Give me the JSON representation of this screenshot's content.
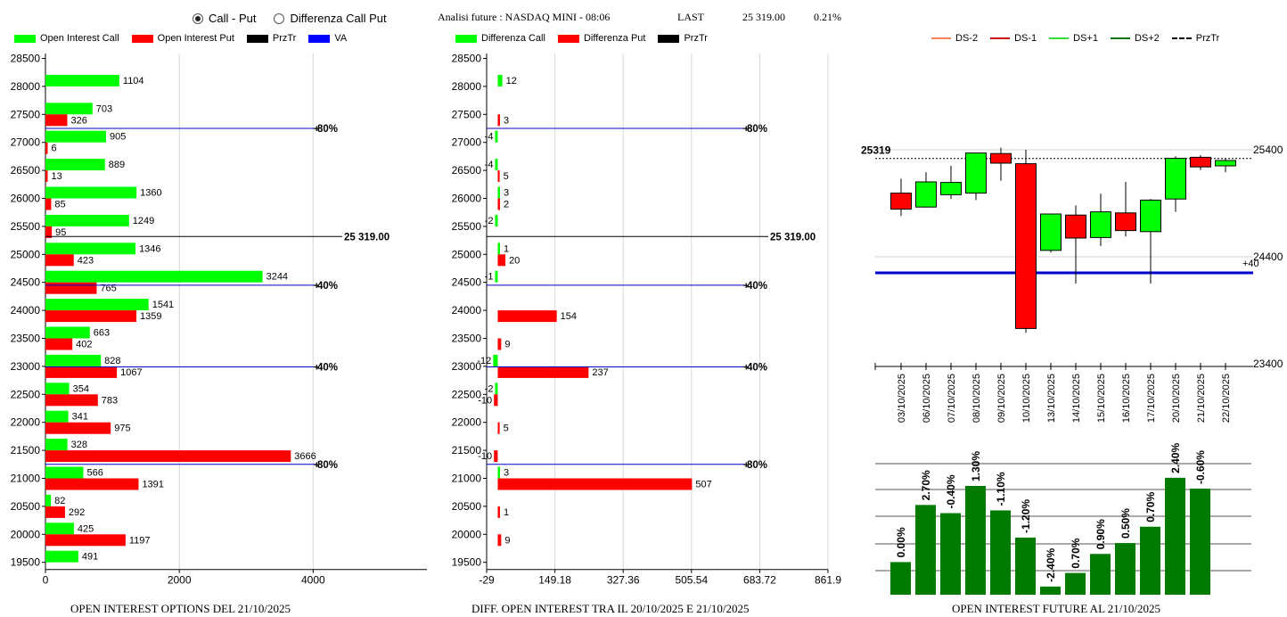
{
  "header": {
    "radio_call_put": "Call - Put",
    "radio_diff": "Differenza Call Put",
    "title": "Analisi future : NASDAQ MINI - 08:06",
    "last_label": "LAST",
    "last_value": "25 319.00",
    "last_change": "0.21%"
  },
  "legends": {
    "left": [
      {
        "label": "Open Interest Call",
        "color": "#00ff00",
        "kind": "box"
      },
      {
        "label": "Open Interest Put",
        "color": "#ff0000",
        "kind": "box"
      },
      {
        "label": "PrzTr",
        "color": "#000000",
        "kind": "box"
      },
      {
        "label": "VA",
        "color": "#0000ff",
        "kind": "box"
      }
    ],
    "mid": [
      {
        "label": "Differenza Call",
        "color": "#00ff00",
        "kind": "box"
      },
      {
        "label": "Differenza Put",
        "color": "#ff0000",
        "kind": "box"
      },
      {
        "label": "PrzTr",
        "color": "#000000",
        "kind": "box"
      }
    ],
    "right": [
      {
        "label": "DS-2",
        "color": "#ff8060",
        "kind": "line"
      },
      {
        "label": "DS-1",
        "color": "#cc0000",
        "kind": "line"
      },
      {
        "label": "DS+1",
        "color": "#33dd33",
        "kind": "line"
      },
      {
        "label": "DS+2",
        "color": "#007700",
        "kind": "line"
      },
      {
        "label": "PrzTr",
        "color": "#000000",
        "kind": "dash"
      }
    ]
  },
  "footers": {
    "left": "OPEN INTEREST OPTIONS DEL 21/10/2025",
    "mid": "DIFF. OPEN INTEREST TRA IL 20/10/2025 E 21/10/2025",
    "right": "OPEN INTEREST FUTURE AL 21/10/2025"
  },
  "chart_data": [
    {
      "type": "bar",
      "orientation": "horizontal",
      "strikes": [
        28500,
        28000,
        27500,
        27000,
        26500,
        26000,
        25500,
        25000,
        24500,
        24000,
        23500,
        23000,
        22500,
        22000,
        21500,
        21000,
        20500,
        20000,
        19500
      ],
      "series": [
        {
          "name": "Open Interest Call",
          "color": "#00ff00",
          "values": [
            null,
            1104,
            703,
            905,
            889,
            1360,
            1249,
            1346,
            3244,
            1541,
            663,
            828,
            354,
            341,
            328,
            566,
            82,
            425,
            491
          ]
        },
        {
          "name": "Open Interest Put",
          "color": "#ff0000",
          "values": [
            null,
            null,
            326,
            6,
            13,
            85,
            95,
            423,
            765,
            1359,
            402,
            1067,
            783,
            975,
            3666,
            1391,
            292,
            1197,
            null
          ]
        }
      ],
      "x_ticks": [
        "0",
        "2000",
        "4000"
      ],
      "xlim": [
        0,
        5700
      ],
      "ref_lines": [
        {
          "label": "80%",
          "strike": 27250,
          "color": "#0000cc"
        },
        {
          "label": "25 319.00",
          "strike": 25319,
          "color": "#000000"
        },
        {
          "label": "40%",
          "strike": 24450,
          "color": "#0000cc"
        },
        {
          "label": "40%",
          "strike": 22990,
          "color": "#0000cc"
        },
        {
          "label": "80%",
          "strike": 21250,
          "color": "#0000cc"
        }
      ]
    },
    {
      "type": "bar",
      "orientation": "horizontal",
      "strikes": [
        28500,
        28000,
        27500,
        27000,
        26500,
        26000,
        25500,
        25000,
        24500,
        24000,
        23500,
        23000,
        22500,
        22000,
        21500,
        21000,
        20500,
        20000,
        19500
      ],
      "series": [
        {
          "name": "Differenza Call",
          "color": "#00ff00",
          "values": [
            null,
            12,
            null,
            -4,
            -4,
            3,
            -2,
            1,
            -1,
            null,
            null,
            -12,
            -2,
            null,
            null,
            3,
            null,
            null,
            null
          ]
        },
        {
          "name": "Differenza Put",
          "color": "#ff0000",
          "values": [
            null,
            null,
            3,
            null,
            5,
            2,
            null,
            20,
            null,
            154,
            9,
            237,
            -10,
            5,
            -10,
            507,
            1,
            9,
            null
          ]
        }
      ],
      "x_ticks": [
        "-29",
        "149.18",
        "327.36",
        "505.54",
        "683.72",
        "861.9"
      ],
      "xlim": [
        -29,
        861.9
      ],
      "ref_lines": [
        {
          "label": "80%",
          "strike": 27250,
          "color": "#0000cc"
        },
        {
          "label": "25 319.00",
          "strike": 25319,
          "color": "#000000"
        },
        {
          "label": "40%",
          "strike": 24450,
          "color": "#0000cc"
        },
        {
          "label": "40%",
          "strike": 22990,
          "color": "#0000cc"
        },
        {
          "label": "80%",
          "strike": 21250,
          "color": "#0000cc"
        }
      ]
    },
    {
      "type": "candlestick",
      "dates": [
        "03/10/2025",
        "06/10/2025",
        "07/10/2025",
        "08/10/2025",
        "09/10/2025",
        "10/10/2025",
        "13/10/2025",
        "14/10/2025",
        "15/10/2025",
        "16/10/2025",
        "17/10/2025",
        "20/10/2025",
        "21/10/2025",
        "22/10/2025"
      ],
      "candles": [
        {
          "o": 24995,
          "c": 24845,
          "h": 25130,
          "l": 24780
        },
        {
          "o": 24865,
          "c": 25100,
          "h": 25190,
          "l": 24860
        },
        {
          "o": 24980,
          "c": 25095,
          "h": 25250,
          "l": 24940
        },
        {
          "o": 24995,
          "c": 25370,
          "h": 25370,
          "l": 24930
        },
        {
          "o": 25365,
          "c": 25275,
          "h": 25420,
          "l": 25110
        },
        {
          "o": 25270,
          "c": 23730,
          "h": 25400,
          "l": 23690
        },
        {
          "o": 24460,
          "c": 24800,
          "h": 24800,
          "l": 24440
        },
        {
          "o": 24790,
          "c": 24575,
          "h": 24880,
          "l": 24150
        },
        {
          "o": 24580,
          "c": 24820,
          "h": 24990,
          "l": 24500
        },
        {
          "o": 24810,
          "c": 24645,
          "h": 25100,
          "l": 24590
        },
        {
          "o": 24635,
          "c": 24930,
          "h": 24940,
          "l": 24150
        },
        {
          "o": 24940,
          "c": 25320,
          "h": 25340,
          "l": 24820
        },
        {
          "o": 25330,
          "c": 25240,
          "h": 25350,
          "l": 25210
        },
        {
          "o": 25250,
          "c": 25300,
          "h": 25320,
          "l": 25190
        }
      ],
      "price_labels": [
        "25400",
        "24400",
        "23400"
      ],
      "ylim": [
        23400,
        25550
      ],
      "przTr": {
        "value": 25319,
        "label": "25319"
      },
      "va_line": {
        "value": 24250,
        "label": "+40"
      }
    },
    {
      "type": "bar",
      "values": [
        0.0,
        2.7,
        -0.4,
        1.3,
        -1.1,
        -1.2,
        -2.4,
        0.7,
        0.9,
        0.5,
        0.7,
        2.4,
        -0.6
      ],
      "labels": [
        "0.00%",
        "2.70%",
        "-0.40%",
        "1.30%",
        "-1.10%",
        "-1.20%",
        "-2.40%",
        "0.70%",
        "0.90%",
        "0.50%",
        "0.70%",
        "2.40%",
        "-0.60%"
      ],
      "open_interest_level": [
        1.2,
        3.3,
        3.0,
        4.0,
        3.1,
        2.1,
        0.3,
        0.8,
        1.5,
        1.9,
        2.5,
        4.3,
        3.9
      ],
      "color": "#007a00"
    }
  ]
}
